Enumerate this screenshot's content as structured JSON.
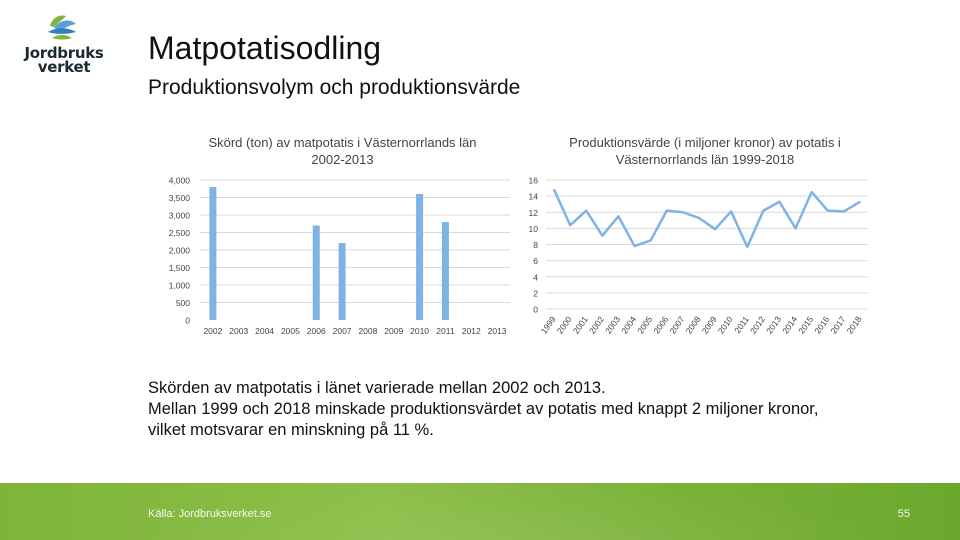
{
  "logo": {
    "line1": "Jordbruks",
    "line2": "verket"
  },
  "title": "Matpotatisodling",
  "subtitle": "Produktionsvolym och produktionsvärde",
  "body": {
    "line1": "Skörden av matpotatis i länet varierade mellan 2002 och 2013.",
    "line2": "Mellan 1999 och 2018 minskade produktionsvärdet av potatis med knappt 2 miljoner kronor,",
    "line3": "vilket motsvarar en minskning på 11 %."
  },
  "footer": {
    "source": "Källa: Jordbruksverket.se",
    "page": "55"
  },
  "colors": {
    "series": "#7fb2e5",
    "grid": "#d9d9d9",
    "footer": "#7fb43a"
  },
  "chart_data": [
    {
      "type": "bar",
      "title": "Skörd (ton) av matpotatis i Västernorrlands län 2002-2013",
      "categories": [
        "2002",
        "2003",
        "2004",
        "2005",
        "2006",
        "2007",
        "2008",
        "2009",
        "2010",
        "2011",
        "2012",
        "2013"
      ],
      "values": [
        3800,
        0,
        0,
        0,
        2700,
        2200,
        0,
        0,
        3600,
        2800,
        0,
        0
      ],
      "ylim": [
        0,
        4000
      ],
      "yticks": [
        "0",
        "500",
        "1,000",
        "1,500",
        "2,000",
        "2,500",
        "3,000",
        "3,500",
        "4,000"
      ],
      "grid": true
    },
    {
      "type": "line",
      "title": "Produktionsvärde (i miljoner kronor) av potatis i Västernorrlands län 1999-2018",
      "x": [
        "1999",
        "2000",
        "2001",
        "2002",
        "2003",
        "2004",
        "2005",
        "2006",
        "2007",
        "2008",
        "2009",
        "2010",
        "2011",
        "2012",
        "2013",
        "2014",
        "2015",
        "2016",
        "2017",
        "2018"
      ],
      "values": [
        14.8,
        10.4,
        12.2,
        9.1,
        11.5,
        7.8,
        8.5,
        12.2,
        12.0,
        11.3,
        9.9,
        12.1,
        7.7,
        12.2,
        13.3,
        10.0,
        14.5,
        12.2,
        12.1,
        13.3
      ],
      "ylim": [
        0,
        16
      ],
      "yticks": [
        "0",
        "2",
        "4",
        "6",
        "8",
        "10",
        "12",
        "14",
        "16"
      ],
      "grid": true
    }
  ]
}
